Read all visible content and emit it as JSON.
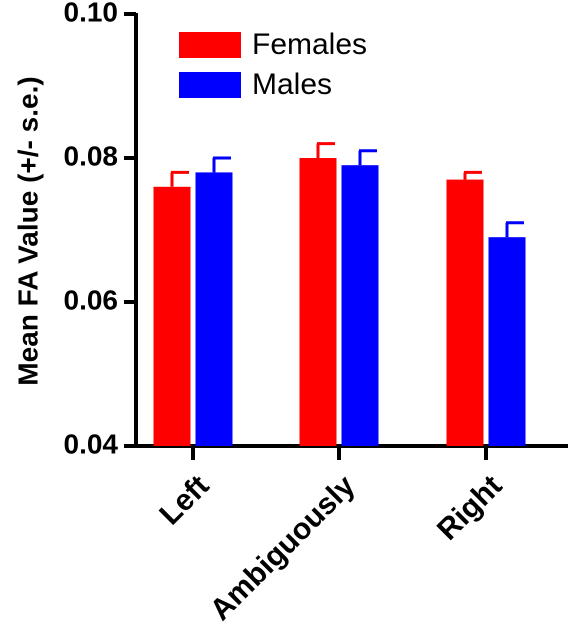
{
  "chart_data": {
    "type": "bar",
    "title": "",
    "xlabel": "",
    "ylabel": "Mean FA Value (+/- s.e.)",
    "ylim": [
      0.04,
      0.1
    ],
    "yticks": [
      "0.04",
      "0.06",
      "0.08",
      "0.10"
    ],
    "ytick_values": [
      0.04,
      0.06,
      0.08,
      0.1
    ],
    "categories": [
      "Left",
      "Ambiguously",
      "Right"
    ],
    "series": [
      {
        "name": "Females",
        "color": "#ff0000",
        "values": [
          0.076,
          0.08,
          0.077
        ],
        "errors": [
          0.002,
          0.002,
          0.001
        ]
      },
      {
        "name": "Males",
        "color": "#0000ff",
        "values": [
          0.078,
          0.079,
          0.069
        ],
        "errors": [
          0.002,
          0.002,
          0.002
        ]
      }
    ],
    "legend": {
      "position": "top-left",
      "entries": [
        "Females",
        "Males"
      ]
    },
    "grid": false
  }
}
